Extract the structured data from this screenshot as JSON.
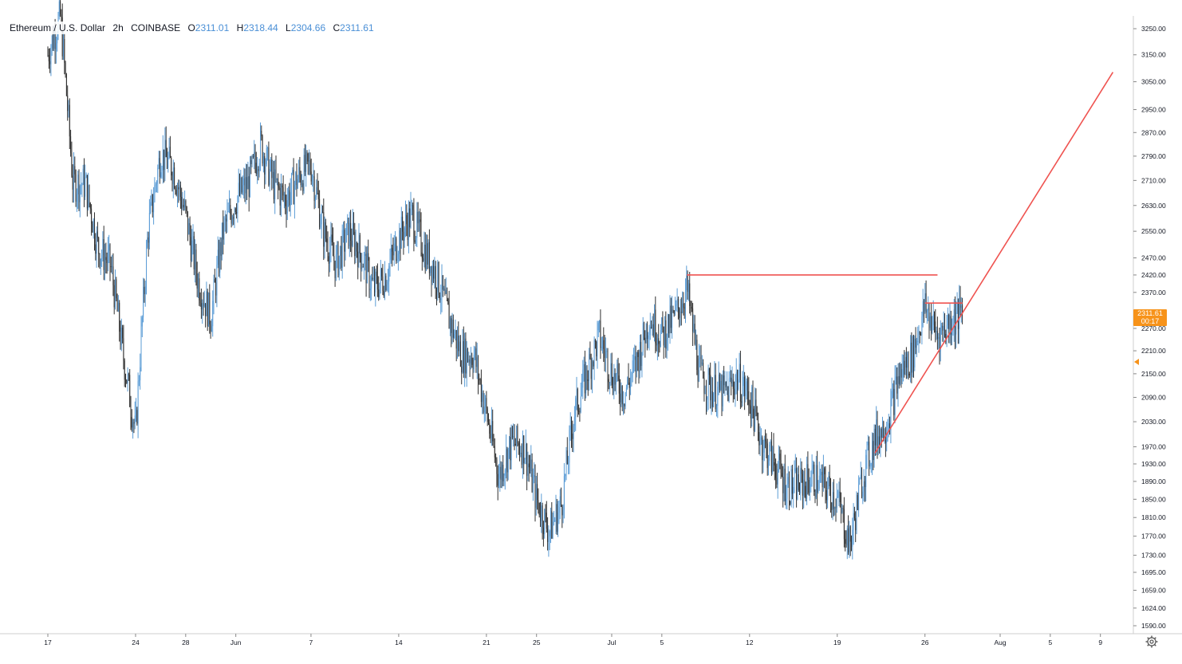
{
  "header": {
    "symbol": "Ethereum / U.S. Dollar",
    "interval": "2h",
    "exchange": "COINBASE",
    "open_label": "O",
    "open": "2311.01",
    "high_label": "H",
    "high": "2318.44",
    "low_label": "L",
    "low": "2304.66",
    "close_label": "C",
    "close": "2311.61"
  },
  "price_tag": {
    "price": "2311.61",
    "countdown": "00:17"
  },
  "colors": {
    "candle_up": "#5b9cd6",
    "candle_down": "#2f2f2f",
    "trendline": "#ef5350",
    "axis": "#131722",
    "price_tag": "#f7931a"
  },
  "icons": {
    "settings": "gear-icon"
  },
  "chart_data": {
    "type": "candlestick",
    "title": "",
    "y_scale": "log",
    "ylim": [
      1570,
      3270
    ],
    "y_ticks": [
      "3250.00",
      "3150.00",
      "3050.00",
      "2950.00",
      "2870.00",
      "2790.00",
      "2710.00",
      "2630.00",
      "2550.00",
      "2470.00",
      "2420.00",
      "2370.00",
      "2310.00",
      "2270.00",
      "2210.00",
      "2150.00",
      "2090.00",
      "2030.00",
      "1970.00",
      "1930.00",
      "1890.00",
      "1850.00",
      "1810.00",
      "1770.00",
      "1730.00",
      "1695.00",
      "1659.00",
      "1624.00",
      "1590.00"
    ],
    "x_ticks": [
      "17",
      "24",
      "28",
      "Jun",
      "7",
      "14",
      "21",
      "25",
      "Jul",
      "5",
      "12",
      "19",
      "26",
      "Aug",
      "5",
      "9"
    ],
    "price_path": [
      [
        "2021-05-17",
        3150
      ],
      [
        "2021-05-18",
        3300
      ],
      [
        "2021-05-19",
        2700
      ],
      [
        "2021-05-20",
        2700
      ],
      [
        "2021-05-21",
        2500
      ],
      [
        "2021-05-22",
        2450
      ],
      [
        "2021-05-23",
        2200
      ],
      [
        "2021-05-24",
        2000
      ],
      [
        "2021-05-25",
        2550
      ],
      [
        "2021-05-26",
        2800
      ],
      [
        "2021-05-27",
        2750
      ],
      [
        "2021-05-28",
        2600
      ],
      [
        "2021-05-29",
        2400
      ],
      [
        "2021-05-30",
        2300
      ],
      [
        "2021-05-31",
        2550
      ],
      [
        "2021-06-01",
        2650
      ],
      [
        "2021-06-02",
        2700
      ],
      [
        "2021-06-03",
        2830
      ],
      [
        "2021-06-04",
        2700
      ],
      [
        "2021-06-05",
        2650
      ],
      [
        "2021-06-06",
        2720
      ],
      [
        "2021-06-07",
        2760
      ],
      [
        "2021-06-08",
        2550
      ],
      [
        "2021-06-09",
        2450
      ],
      [
        "2021-06-10",
        2550
      ],
      [
        "2021-06-11",
        2480
      ],
      [
        "2021-06-12",
        2380
      ],
      [
        "2021-06-13",
        2420
      ],
      [
        "2021-06-14",
        2530
      ],
      [
        "2021-06-15",
        2600
      ],
      [
        "2021-06-16",
        2500
      ],
      [
        "2021-06-17",
        2420
      ],
      [
        "2021-06-18",
        2300
      ],
      [
        "2021-06-19",
        2200
      ],
      [
        "2021-06-20",
        2200
      ],
      [
        "2021-06-21",
        2050
      ],
      [
        "2021-06-22",
        1900
      ],
      [
        "2021-06-23",
        1980
      ],
      [
        "2021-06-24",
        1970
      ],
      [
        "2021-06-25",
        1850
      ],
      [
        "2021-06-26",
        1780
      ],
      [
        "2021-06-27",
        1840
      ],
      [
        "2021-06-28",
        2050
      ],
      [
        "2021-06-29",
        2150
      ],
      [
        "2021-06-30",
        2250
      ],
      [
        "2021-07-01",
        2150
      ],
      [
        "2021-07-02",
        2100
      ],
      [
        "2021-07-03",
        2180
      ],
      [
        "2021-07-04",
        2300
      ],
      [
        "2021-07-05",
        2250
      ],
      [
        "2021-07-06",
        2300
      ],
      [
        "2021-07-07",
        2380
      ],
      [
        "2021-07-08",
        2150
      ],
      [
        "2021-07-09",
        2110
      ],
      [
        "2021-07-10",
        2100
      ],
      [
        "2021-07-11",
        2140
      ],
      [
        "2021-07-12",
        2090
      ],
      [
        "2021-07-13",
        1980
      ],
      [
        "2021-07-14",
        1930
      ],
      [
        "2021-07-15",
        1880
      ],
      [
        "2021-07-16",
        1880
      ],
      [
        "2021-07-17",
        1900
      ],
      [
        "2021-07-18",
        1880
      ],
      [
        "2021-07-19",
        1850
      ],
      [
        "2021-07-20",
        1750
      ],
      [
        "2021-07-21",
        1900
      ],
      [
        "2021-07-22",
        1990
      ],
      [
        "2021-07-23",
        2030
      ],
      [
        "2021-07-24",
        2150
      ],
      [
        "2021-07-25",
        2200
      ],
      [
        "2021-07-26",
        2330
      ],
      [
        "2021-07-27",
        2250
      ],
      [
        "2021-07-28",
        2290
      ],
      [
        "2021-07-29",
        2311.61
      ]
    ],
    "trendlines": [
      {
        "from": [
          "2021-07-07",
          2420
        ],
        "to": [
          "2021-07-27",
          2420
        ]
      },
      {
        "from": [
          "2021-07-26",
          2340
        ],
        "to": [
          "2021-07-29",
          2340
        ]
      },
      {
        "from": [
          "2021-07-22",
          1955
        ],
        "to": [
          "2021-08-10",
          3085
        ]
      }
    ]
  }
}
